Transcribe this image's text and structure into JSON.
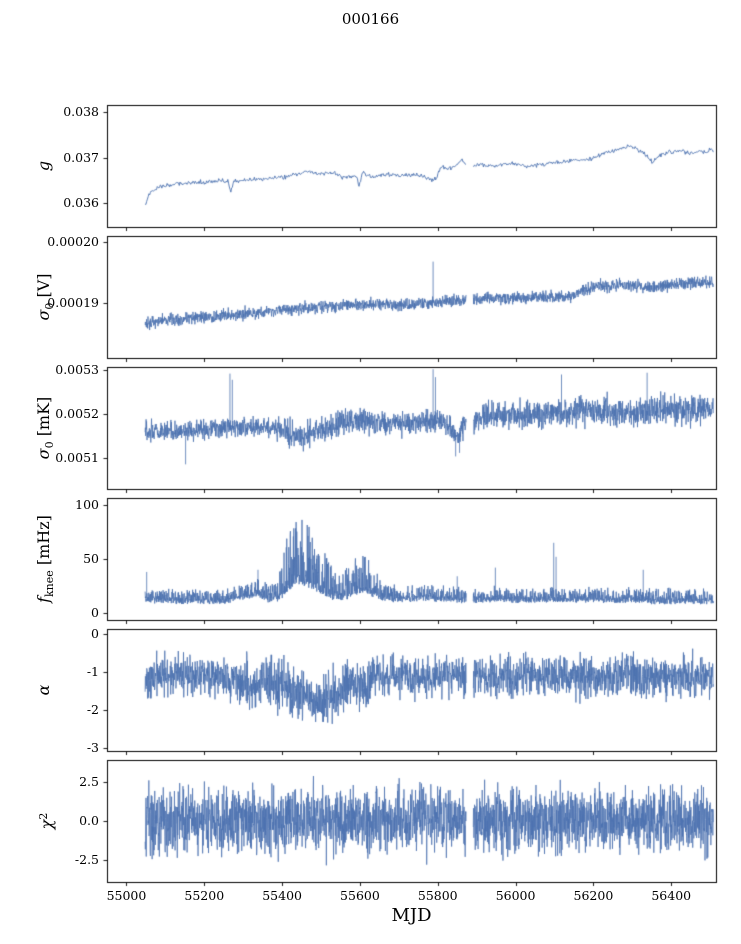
{
  "figure": {
    "background": "#ffffff"
  },
  "chart_data": {
    "type": "line",
    "title": "000166",
    "xlabel": "MJD",
    "x_range": [
      54950,
      56515
    ],
    "xticks": [
      55000,
      55200,
      55400,
      55600,
      55800,
      56000,
      56200,
      56400
    ],
    "xtick_labels": [
      "55000",
      "55200",
      "55400",
      "55600",
      "55800",
      "56000",
      "56200",
      "56400"
    ],
    "data_start": 55048,
    "data_end": 56508,
    "gap": [
      55873,
      55891
    ],
    "line_color": "#4c72b0",
    "axis_color": "#000000",
    "seed": 166,
    "legend": "none",
    "grid": "off",
    "panels": [
      {
        "ylabel": "g",
        "ylabel_parts": [
          {
            "t": "g",
            "s": "i"
          }
        ],
        "ylim": [
          0.03548,
          0.03816
        ],
        "yticks": [
          0.036,
          0.037,
          0.038
        ],
        "ytick_labels": [
          "0.036",
          "0.037",
          "0.038"
        ],
        "points": 750,
        "line_width": 0.9,
        "noise": "bell",
        "amp": [
          [
            55048,
            7e-05
          ],
          [
            56508,
            7e-05
          ]
        ],
        "trend": [
          [
            55048,
            0.03598
          ],
          [
            55060,
            0.03622
          ],
          [
            55085,
            0.03638
          ],
          [
            55130,
            0.03642
          ],
          [
            55180,
            0.03646
          ],
          [
            55240,
            0.0365
          ],
          [
            55262,
            0.03648
          ],
          [
            55268,
            0.03624
          ],
          [
            55276,
            0.03648
          ],
          [
            55330,
            0.03652
          ],
          [
            55390,
            0.03656
          ],
          [
            55430,
            0.03662
          ],
          [
            55465,
            0.0367
          ],
          [
            55495,
            0.03664
          ],
          [
            55525,
            0.03669
          ],
          [
            55555,
            0.03657
          ],
          [
            55590,
            0.0366
          ],
          [
            55597,
            0.03636
          ],
          [
            55606,
            0.03668
          ],
          [
            55635,
            0.03658
          ],
          [
            55670,
            0.03664
          ],
          [
            55710,
            0.03661
          ],
          [
            55745,
            0.03663
          ],
          [
            55775,
            0.03654
          ],
          [
            55795,
            0.03652
          ],
          [
            55808,
            0.03682
          ],
          [
            55835,
            0.03676
          ],
          [
            55862,
            0.03694
          ],
          [
            55885,
            0.0368
          ],
          [
            55915,
            0.03686
          ],
          [
            55950,
            0.03681
          ],
          [
            55990,
            0.03688
          ],
          [
            56030,
            0.03681
          ],
          [
            56070,
            0.03686
          ],
          [
            56110,
            0.03689
          ],
          [
            56150,
            0.03693
          ],
          [
            56195,
            0.03698
          ],
          [
            56235,
            0.03712
          ],
          [
            56265,
            0.03719
          ],
          [
            56295,
            0.03726
          ],
          [
            56325,
            0.03713
          ],
          [
            56352,
            0.03692
          ],
          [
            56378,
            0.03709
          ],
          [
            56415,
            0.03716
          ],
          [
            56455,
            0.03711
          ],
          [
            56508,
            0.03717
          ]
        ],
        "spikes": []
      },
      {
        "ylabel": "σ0 [V]",
        "ylabel_parts": [
          {
            "t": "σ",
            "s": "i"
          },
          {
            "t": "0",
            "s": "sub"
          },
          {
            "t": " [V]",
            "s": "n"
          }
        ],
        "ylim": [
          0.000181,
          0.000201
        ],
        "yticks": [
          0.00019,
          0.0002
        ],
        "ytick_labels": [
          "0.00019",
          "0.00020"
        ],
        "points": 2400,
        "line_width": 0.8,
        "noise": "bell",
        "amp": [
          [
            55048,
            1.4e-06
          ],
          [
            56508,
            1.5e-06
          ]
        ],
        "trend": [
          [
            55048,
            0.0001866
          ],
          [
            55100,
            0.0001871
          ],
          [
            55200,
            0.0001877
          ],
          [
            55300,
            0.0001882
          ],
          [
            55400,
            0.0001889
          ],
          [
            55500,
            0.0001894
          ],
          [
            55600,
            0.0001897
          ],
          [
            55700,
            0.0001898
          ],
          [
            55780,
            0.0001899
          ],
          [
            55820,
            0.0001903
          ],
          [
            55900,
            0.0001907
          ],
          [
            56000,
            0.0001908
          ],
          [
            56080,
            0.000191
          ],
          [
            56140,
            0.0001912
          ],
          [
            56180,
            0.0001922
          ],
          [
            56220,
            0.0001929
          ],
          [
            56300,
            0.0001929
          ],
          [
            56350,
            0.0001925
          ],
          [
            56400,
            0.0001929
          ],
          [
            56450,
            0.0001933
          ],
          [
            56508,
            0.0001933
          ]
        ],
        "spikes": [
          [
            55788,
            0.0001968
          ]
        ]
      },
      {
        "ylabel": "σ0 [mK]",
        "ylabel_parts": [
          {
            "t": "σ",
            "s": "i"
          },
          {
            "t": "0",
            "s": "sub"
          },
          {
            "t": " [mK]",
            "s": "n"
          }
        ],
        "ylim": [
          0.00503,
          0.005307
        ],
        "yticks": [
          0.0051,
          0.0052,
          0.0053
        ],
        "ytick_labels": [
          "0.0051",
          "0.0052",
          "0.0053"
        ],
        "points": 2400,
        "line_width": 0.8,
        "noise": "bell",
        "amp": [
          [
            55048,
            3.2e-05
          ],
          [
            55380,
            3.2e-05
          ],
          [
            55420,
            4.6e-05
          ],
          [
            55480,
            4.2e-05
          ],
          [
            55560,
            4.4e-05
          ],
          [
            55620,
            4.6e-05
          ],
          [
            55680,
            3.6e-05
          ],
          [
            55860,
            4e-05
          ],
          [
            55920,
            4.4e-05
          ],
          [
            56000,
            4.8e-05
          ],
          [
            56508,
            4.8e-05
          ]
        ],
        "trend": [
          [
            55048,
            0.005163
          ],
          [
            55150,
            0.005161
          ],
          [
            55250,
            0.005168
          ],
          [
            55350,
            0.005171
          ],
          [
            55410,
            0.00516
          ],
          [
            55440,
            0.00515
          ],
          [
            55470,
            0.00516
          ],
          [
            55520,
            0.005168
          ],
          [
            55580,
            0.005186
          ],
          [
            55640,
            0.005179
          ],
          [
            55700,
            0.005178
          ],
          [
            55760,
            0.005183
          ],
          [
            55805,
            0.005186
          ],
          [
            55835,
            0.005168
          ],
          [
            55852,
            0.005152
          ],
          [
            55872,
            0.00518
          ],
          [
            55920,
            0.005194
          ],
          [
            55980,
            0.0052
          ],
          [
            56040,
            0.005197
          ],
          [
            56100,
            0.005203
          ],
          [
            56160,
            0.005206
          ],
          [
            56220,
            0.005208
          ],
          [
            56280,
            0.005205
          ],
          [
            56340,
            0.005208
          ],
          [
            56400,
            0.00521
          ],
          [
            56460,
            0.005208
          ],
          [
            56508,
            0.00521
          ]
        ],
        "spikes": [
          [
            55152,
            0.005086
          ],
          [
            55266,
            0.005292
          ],
          [
            55272,
            0.005278
          ],
          [
            55788,
            0.005302
          ],
          [
            55794,
            0.005284
          ],
          [
            55846,
            0.005104
          ],
          [
            55856,
            0.005112
          ],
          [
            56118,
            0.00529
          ],
          [
            56338,
            0.005294
          ]
        ]
      },
      {
        "ylabel": "f_knee [mHz]",
        "ylabel_parts": [
          {
            "t": "f",
            "s": "i"
          },
          {
            "t": "knee",
            "s": "sub"
          },
          {
            "t": " [mHz]",
            "s": "n"
          }
        ],
        "ylim": [
          -6.5,
          106.5
        ],
        "yticks": [
          0,
          50,
          100
        ],
        "ytick_labels": [
          "0",
          "50",
          "100"
        ],
        "points": 2500,
        "line_width": 0.8,
        "noise": "spiky-up",
        "down_amp": 5,
        "amp": [
          [
            55048,
            1
          ],
          [
            56508,
            1
          ]
        ],
        "up_amp": [
          [
            55048,
            11
          ],
          [
            55290,
            12
          ],
          [
            55380,
            16
          ],
          [
            55408,
            45
          ],
          [
            55428,
            64
          ],
          [
            55444,
            68
          ],
          [
            55462,
            60
          ],
          [
            55482,
            52
          ],
          [
            55502,
            42
          ],
          [
            55522,
            32
          ],
          [
            55544,
            22
          ],
          [
            55564,
            26
          ],
          [
            55584,
            35
          ],
          [
            55604,
            38
          ],
          [
            55624,
            30
          ],
          [
            55644,
            22
          ],
          [
            55672,
            14
          ],
          [
            55702,
            11
          ],
          [
            56508,
            11
          ]
        ],
        "trend": [
          [
            55048,
            14
          ],
          [
            55150,
            13
          ],
          [
            55250,
            13
          ],
          [
            55305,
            17
          ],
          [
            55335,
            19
          ],
          [
            55365,
            14
          ],
          [
            55395,
            16
          ],
          [
            55418,
            25
          ],
          [
            55435,
            32
          ],
          [
            55452,
            30
          ],
          [
            55470,
            28
          ],
          [
            55490,
            24
          ],
          [
            55510,
            20
          ],
          [
            55530,
            17
          ],
          [
            55552,
            16
          ],
          [
            55572,
            18
          ],
          [
            55592,
            22
          ],
          [
            55612,
            24
          ],
          [
            55632,
            20
          ],
          [
            55652,
            17
          ],
          [
            55682,
            15
          ],
          [
            55722,
            15
          ],
          [
            55762,
            16
          ],
          [
            55802,
            15
          ],
          [
            55852,
            14
          ],
          [
            55902,
            14
          ],
          [
            55952,
            15
          ],
          [
            56002,
            14
          ],
          [
            56052,
            14
          ],
          [
            56102,
            15
          ],
          [
            56152,
            14
          ],
          [
            56202,
            14
          ],
          [
            56252,
            14
          ],
          [
            56302,
            14
          ],
          [
            56352,
            13
          ],
          [
            56402,
            13
          ],
          [
            56452,
            13
          ],
          [
            56508,
            13
          ]
        ],
        "spikes": [
          [
            55052,
            38
          ],
          [
            55338,
            40
          ],
          [
            55850,
            34
          ],
          [
            55948,
            42
          ],
          [
            56098,
            65
          ],
          [
            56104,
            52
          ],
          [
            56328,
            40
          ]
        ]
      },
      {
        "ylabel": "α",
        "ylabel_parts": [
          {
            "t": "α",
            "s": "i"
          }
        ],
        "ylim": [
          -3.08,
          0.13
        ],
        "yticks": [
          -3,
          -2,
          -1,
          0
        ],
        "ytick_labels": [
          "-3",
          "-2",
          "-1",
          "0"
        ],
        "points": 2400,
        "line_width": 0.8,
        "noise": "bell",
        "amp": [
          [
            55048,
            0.72
          ],
          [
            55270,
            0.72
          ],
          [
            55310,
            0.95
          ],
          [
            55610,
            0.95
          ],
          [
            55655,
            0.75
          ],
          [
            56508,
            0.78
          ]
        ],
        "trend": [
          [
            55048,
            -1.1
          ],
          [
            55150,
            -1.1
          ],
          [
            55250,
            -1.13
          ],
          [
            55295,
            -1.24
          ],
          [
            55325,
            -1.34
          ],
          [
            55355,
            -1.24
          ],
          [
            55385,
            -1.3
          ],
          [
            55415,
            -1.44
          ],
          [
            55445,
            -1.54
          ],
          [
            55475,
            -1.64
          ],
          [
            55505,
            -1.7
          ],
          [
            55535,
            -1.6
          ],
          [
            55558,
            -1.44
          ],
          [
            55578,
            -1.3
          ],
          [
            55598,
            -1.44
          ],
          [
            55618,
            -1.34
          ],
          [
            55648,
            -1.15
          ],
          [
            55700,
            -1.1
          ],
          [
            55800,
            -1.12
          ],
          [
            55900,
            -1.1
          ],
          [
            56000,
            -1.12
          ],
          [
            56100,
            -1.1
          ],
          [
            56200,
            -1.12
          ],
          [
            56300,
            -1.1
          ],
          [
            56400,
            -1.12
          ],
          [
            56508,
            -1.1
          ]
        ],
        "spikes": []
      },
      {
        "ylabel": "χ2",
        "ylabel_parts": [
          {
            "t": "χ",
            "s": "i"
          },
          {
            "t": "2",
            "s": "sup"
          }
        ],
        "ylim": [
          -3.9,
          3.9
        ],
        "yticks": [
          -2.5,
          0,
          2.5
        ],
        "ytick_labels": [
          "-2.5",
          "0.0",
          "2.5"
        ],
        "points": 2600,
        "line_width": 0.75,
        "noise": "bell",
        "amp": [
          [
            55048,
            3.05
          ],
          [
            56508,
            3.05
          ]
        ],
        "trend": [
          [
            55048,
            0
          ],
          [
            56508,
            0
          ]
        ],
        "spikes": []
      }
    ]
  }
}
